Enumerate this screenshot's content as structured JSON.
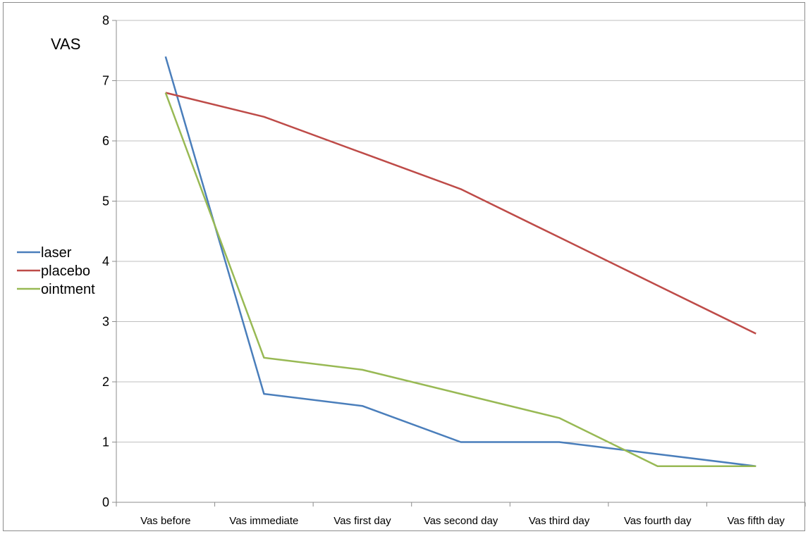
{
  "chart_data": {
    "type": "line",
    "ylabel": "VAS",
    "xlabel": "",
    "ylim": [
      0,
      8
    ],
    "yticks": [
      0,
      1,
      2,
      3,
      4,
      5,
      6,
      7,
      8
    ],
    "grid": true,
    "legend_position": "left",
    "categories": [
      "Vas before",
      "Vas immediate",
      "Vas first day",
      "Vas second day",
      "Vas third day",
      "Vas fourth day",
      "Vas fifth day"
    ],
    "series": [
      {
        "name": "laser",
        "color": "#4a7ebb",
        "values": [
          7.4,
          1.8,
          1.6,
          1.0,
          1.0,
          0.8,
          0.6
        ]
      },
      {
        "name": "placebo",
        "color": "#be4b48",
        "values": [
          6.8,
          6.4,
          5.8,
          5.2,
          4.4,
          3.6,
          2.8
        ]
      },
      {
        "name": "ointment",
        "color": "#98b954",
        "values": [
          6.8,
          2.4,
          2.2,
          1.8,
          1.4,
          0.6,
          0.6
        ]
      }
    ]
  }
}
